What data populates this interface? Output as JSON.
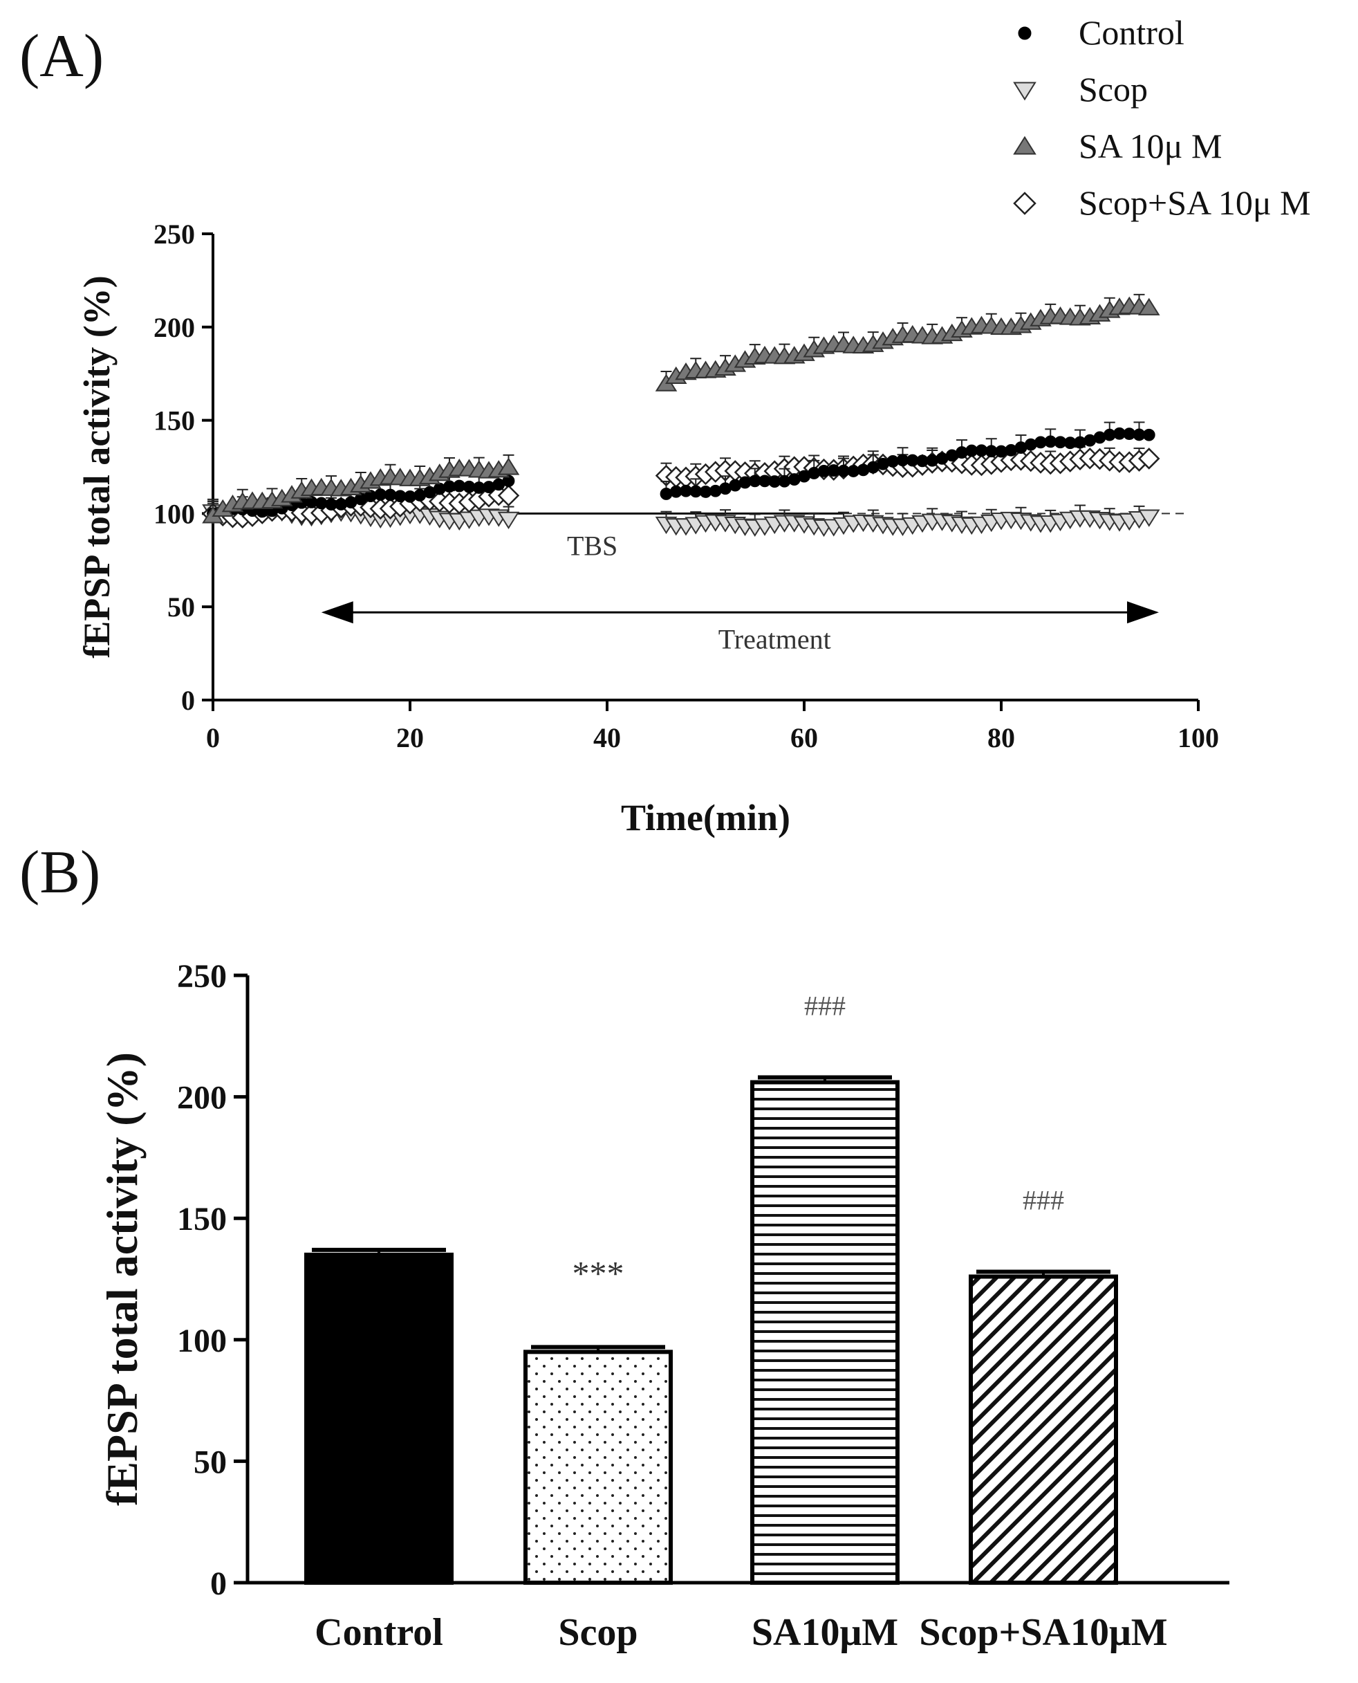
{
  "panels": {
    "a_label": "(A)",
    "b_label": "(B)"
  },
  "chart_data": [
    {
      "type": "scatter",
      "xlabel": "Time(min)",
      "ylabel": "fEPSP total activity (%)",
      "xlim": [
        0,
        100
      ],
      "ylim": [
        0,
        250
      ],
      "xticks": [
        "0",
        "20",
        "40",
        "60",
        "80",
        "100"
      ],
      "yticks": [
        "0",
        "50",
        "100",
        "150",
        "200",
        "250"
      ],
      "baseline": 100,
      "annotations": {
        "tbs": "TBS",
        "treatment": "Treatment",
        "treatment_range": [
          11,
          96
        ]
      },
      "legend": [
        {
          "name": "Control",
          "marker": "circle"
        },
        {
          "name": "Scop",
          "marker": "triangle-down"
        },
        {
          "name": "SA 10μ M",
          "marker": "triangle-up"
        },
        {
          "name": "Scop+SA 10μ M",
          "marker": "diamond"
        }
      ],
      "series": [
        {
          "name": "Control",
          "pre_start": 100,
          "pre_end": 118,
          "post_start": 111,
          "post_end": 143
        },
        {
          "name": "Scop",
          "pre_start": 99,
          "pre_end": 98,
          "post_start": 95,
          "post_end": 96
        },
        {
          "name": "SA 10μ M",
          "pre_start": 100,
          "pre_end": 124,
          "post_start": 168,
          "post_end": 212
        },
        {
          "name": "Scop+SA 10μ M",
          "pre_start": 100,
          "pre_end": 108,
          "post_start": 120,
          "post_end": 130
        }
      ],
      "time_segments": {
        "pre": [
          0,
          30
        ],
        "post": [
          46,
          95
        ]
      }
    },
    {
      "type": "bar",
      "xlabel": "",
      "ylabel": "fEPSP total activity (%)",
      "ylim": [
        0,
        250
      ],
      "yticks": [
        "0",
        "50",
        "100",
        "150",
        "200",
        "250"
      ],
      "categories": [
        "Control",
        "Scop",
        "SA10μM",
        "Scop+SA10μM"
      ],
      "values": [
        135,
        95,
        206,
        126
      ],
      "errors": [
        2,
        2,
        2,
        2
      ],
      "significance": [
        "",
        "***",
        "###",
        "###"
      ],
      "fill_patterns": [
        "solid-black",
        "dotted",
        "horizontal-lines",
        "diagonal-lines"
      ]
    }
  ]
}
